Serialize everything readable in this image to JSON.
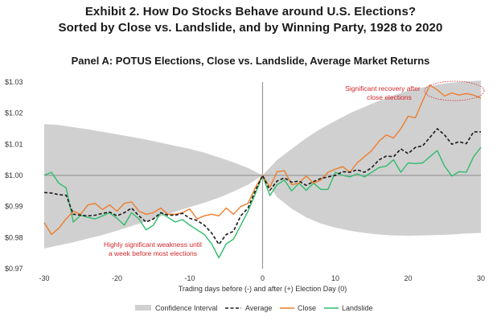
{
  "titles": {
    "line1": "Exhibit 2. How Do Stocks Behave around U.S. Elections?",
    "line2": "Sorted by Close vs. Landslide, and by Winning Party, 1928 to 2020",
    "panel": "Panel A: POTUS Elections, Close vs. Landslide, Average Market Returns"
  },
  "colors": {
    "average": "#1a1a1a",
    "close": "#ee7d2c",
    "landslide": "#2ebd6b",
    "confidence": "#d0d0d0",
    "annotation": "#d2272e"
  },
  "chart_data": {
    "type": "line",
    "title": "Panel A: POTUS Elections, Close vs. Landslide, Average Market Returns",
    "xlabel": "Trading days before (-) and after (+) Election Day (0)",
    "ylabel": "",
    "xlim": [
      -30,
      30
    ],
    "ylim": [
      0.97,
      1.03
    ],
    "xticks": [
      -30,
      -20,
      -10,
      0,
      10,
      20,
      30
    ],
    "xtick_labels": [
      "-30",
      "-20",
      "-10",
      "0",
      "10",
      "20",
      "30"
    ],
    "yticks": [
      0.97,
      0.98,
      0.99,
      1.0,
      1.01,
      1.02,
      1.03
    ],
    "ytick_labels": [
      "$0.97",
      "$0.98",
      "$0.99",
      "$1.00",
      "$1.01",
      "$1.02",
      "$1.03"
    ],
    "reference_lines": {
      "y": 1.0,
      "x": 0
    },
    "legend": [
      "Confidence Interval",
      "Average",
      "Close",
      "Landslide"
    ],
    "legend_position": "bottom",
    "annotations": [
      {
        "text_lines": [
          "Significant recovery after",
          "close elections"
        ]
      },
      {
        "text_lines": [
          "Highly significant weakness until",
          "a week before most elections"
        ]
      }
    ],
    "confidence_interval": {
      "x": [
        -30,
        -28,
        -26,
        -24,
        -22,
        -20,
        -18,
        -16,
        -14,
        -12,
        -10,
        -8,
        -6,
        -4,
        -2,
        0,
        2,
        4,
        6,
        8,
        10,
        12,
        14,
        16,
        18,
        20,
        22,
        24,
        26,
        28,
        30
      ],
      "upper": [
        1.0165,
        1.0162,
        1.0155,
        1.0148,
        1.014,
        1.0132,
        1.0124,
        1.0115,
        1.0105,
        1.0095,
        1.0085,
        1.0073,
        1.0058,
        1.0042,
        1.0024,
        1.0,
        1.005,
        1.0085,
        1.012,
        1.015,
        1.0175,
        1.02,
        1.022,
        1.024,
        1.0257,
        1.0272,
        1.0283,
        1.0292,
        1.0298,
        1.0302,
        1.0305
      ],
      "lower": [
        0.9765,
        0.9775,
        0.9785,
        0.9797,
        0.9808,
        0.9822,
        0.9837,
        0.9852,
        0.9868,
        0.9883,
        0.9898,
        0.9912,
        0.9928,
        0.9948,
        0.997,
        1.0,
        0.993,
        0.9893,
        0.9865,
        0.9845,
        0.9832,
        0.9822,
        0.9815,
        0.981,
        0.9807,
        0.9806,
        0.9807,
        0.9808,
        0.981,
        0.9813,
        0.9815
      ]
    },
    "series": [
      {
        "name": "Average",
        "style": "dashed",
        "x": [
          -30,
          -29,
          -28,
          -27,
          -26,
          -25,
          -24,
          -23,
          -22,
          -21,
          -20,
          -19,
          -18,
          -17,
          -16,
          -15,
          -14,
          -13,
          -12,
          -11,
          -10,
          -9,
          -8,
          -7,
          -6,
          -5,
          -4,
          -3,
          -2,
          -1,
          0,
          1,
          2,
          3,
          4,
          5,
          6,
          7,
          8,
          9,
          10,
          11,
          12,
          13,
          14,
          15,
          16,
          17,
          18,
          19,
          20,
          21,
          22,
          23,
          24,
          25,
          26,
          27,
          28,
          29,
          30
        ],
        "y": [
          0.9945,
          0.9943,
          0.9938,
          0.9936,
          0.9875,
          0.9872,
          0.987,
          0.9872,
          0.9878,
          0.9882,
          0.987,
          0.988,
          0.9895,
          0.987,
          0.985,
          0.986,
          0.988,
          0.9872,
          0.9872,
          0.9878,
          0.9862,
          0.9855,
          0.984,
          0.9815,
          0.9778,
          0.981,
          0.982,
          0.987,
          0.9895,
          0.995,
          1.0,
          0.9952,
          0.9982,
          0.9992,
          0.9978,
          0.9982,
          0.9968,
          0.998,
          0.999,
          0.9995,
          1.0,
          1.0012,
          1.001,
          1.0018,
          1.001,
          1.0025,
          1.005,
          1.0062,
          1.006,
          1.0085,
          1.007,
          1.009,
          1.0095,
          1.0122,
          1.015,
          1.013,
          1.01,
          1.0108,
          1.0102,
          1.014,
          1.014
        ]
      },
      {
        "name": "Close",
        "style": "solid",
        "x": [
          -30,
          -29,
          -28,
          -27,
          -26,
          -25,
          -24,
          -23,
          -22,
          -21,
          -20,
          -19,
          -18,
          -17,
          -16,
          -15,
          -14,
          -13,
          -12,
          -11,
          -10,
          -9,
          -8,
          -7,
          -6,
          -5,
          -4,
          -3,
          -2,
          -1,
          0,
          1,
          2,
          3,
          4,
          5,
          6,
          7,
          8,
          9,
          10,
          11,
          12,
          13,
          14,
          15,
          16,
          17,
          18,
          19,
          20,
          21,
          22,
          23,
          24,
          25,
          26,
          27,
          28,
          29,
          30
        ],
        "y": [
          0.9848,
          0.981,
          0.983,
          0.986,
          0.9885,
          0.9875,
          0.9905,
          0.991,
          0.989,
          0.9905,
          0.9885,
          0.991,
          0.9915,
          0.9885,
          0.9875,
          0.988,
          0.9895,
          0.9875,
          0.9875,
          0.988,
          0.9892,
          0.986,
          0.987,
          0.9875,
          0.987,
          0.9895,
          0.9875,
          0.99,
          0.991,
          0.996,
          1.0,
          0.9962,
          1.0012,
          1.0015,
          0.997,
          0.9975,
          0.9998,
          0.9975,
          0.9985,
          1.001,
          1.002,
          1.0028,
          1.001,
          1.004,
          1.006,
          1.008,
          1.011,
          1.013,
          1.012,
          1.015,
          1.019,
          1.0185,
          1.024,
          1.029,
          1.0275,
          1.0255,
          1.0265,
          1.0258,
          1.0263,
          1.0258,
          1.0248
        ]
      },
      {
        "name": "Landslide",
        "style": "solid",
        "x": [
          -30,
          -29,
          -28,
          -27,
          -26,
          -25,
          -24,
          -23,
          -22,
          -21,
          -20,
          -19,
          -18,
          -17,
          -16,
          -15,
          -14,
          -13,
          -12,
          -11,
          -10,
          -9,
          -8,
          -7,
          -6,
          -5,
          -4,
          -3,
          -2,
          -1,
          0,
          1,
          2,
          3,
          4,
          5,
          6,
          7,
          8,
          9,
          10,
          11,
          12,
          13,
          14,
          15,
          16,
          17,
          18,
          19,
          20,
          21,
          22,
          23,
          24,
          25,
          26,
          27,
          28,
          29,
          30
        ],
        "y": [
          1.0,
          1.001,
          0.9975,
          0.996,
          0.985,
          0.9872,
          0.9865,
          0.986,
          0.987,
          0.988,
          0.9862,
          0.984,
          0.988,
          0.986,
          0.9825,
          0.984,
          0.988,
          0.9865,
          0.985,
          0.9858,
          0.984,
          0.9825,
          0.981,
          0.978,
          0.9735,
          0.978,
          0.9795,
          0.984,
          0.9885,
          0.994,
          1.0,
          0.9935,
          0.997,
          0.9985,
          0.995,
          0.9975,
          0.9952,
          0.9975,
          0.9955,
          0.9955,
          1.001,
          1.0,
          0.9995,
          1.0005,
          0.9995,
          1.001,
          1.0025,
          1.003,
          1.005,
          1.001,
          1.004,
          1.0038,
          1.004,
          1.006,
          1.008,
          1.003,
          0.9998,
          1.0012,
          1.001,
          1.006,
          1.009
        ]
      }
    ]
  }
}
